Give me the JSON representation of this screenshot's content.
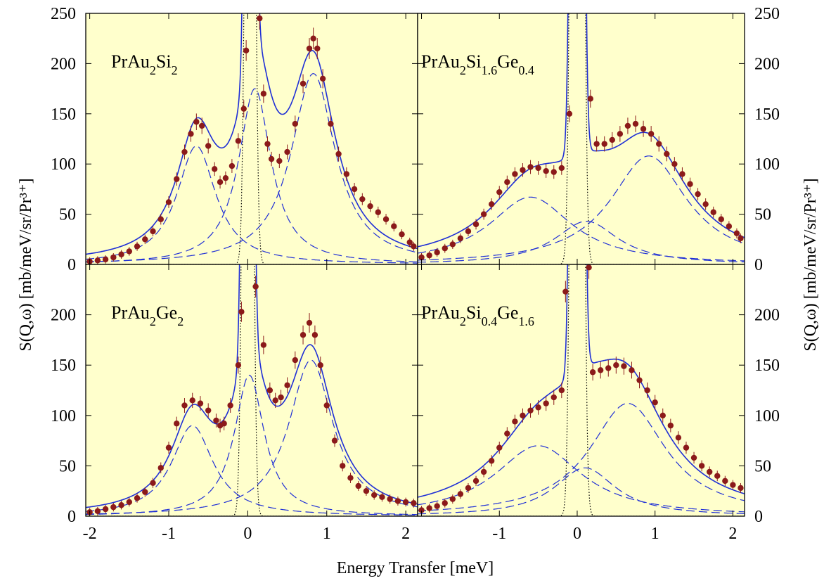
{
  "chart_data": {
    "type": "scatter",
    "xlabel": "Energy Transfer [meV]",
    "ylabel_left": "S(Q,ω) [mb/meV/sr/Pr³⁺]",
    "ylabel_right": "S(Q,ω) [mb/meV/sr/Pr³⁺]",
    "xlim": [
      -2.05,
      2.15
    ],
    "ylim": [
      0,
      250
    ],
    "x_ticks": [
      "-2",
      "-1",
      "0",
      "1",
      "2"
    ],
    "y_ticks_top": [
      "0",
      "50",
      "100",
      "150",
      "200",
      "250"
    ],
    "y_ticks_bottom": [
      "0",
      "50",
      "100",
      "150",
      "200"
    ],
    "colors": {
      "data": "#8b1a1a",
      "fit": "#1f2fd6",
      "background": "#ffffcc",
      "elastic": "#000000"
    },
    "panels": [
      {
        "id": "PrAu2Si2",
        "label_main": "PrAu",
        "label_parts": [
          [
            "PrAu",
            ""
          ],
          [
            "2",
            "sub"
          ],
          [
            "Si",
            ""
          ],
          [
            "2",
            "sub"
          ]
        ],
        "legend_pos": "top-left",
        "inelastic": [
          {
            "x0": -0.65,
            "gamma": 0.3,
            "amp": 118
          },
          {
            "x0": 0.83,
            "gamma": 0.34,
            "amp": 190
          }
        ],
        "quasielastic": {
          "x0": 0.09,
          "gamma": 0.25,
          "amp": 175
        },
        "elastic": {
          "x0": 0.03,
          "sigma": 0.045,
          "amp": 1200
        },
        "points": [
          [
            -2.0,
            3
          ],
          [
            -1.9,
            4
          ],
          [
            -1.8,
            5
          ],
          [
            -1.7,
            7
          ],
          [
            -1.6,
            10
          ],
          [
            -1.5,
            13
          ],
          [
            -1.4,
            18
          ],
          [
            -1.3,
            25
          ],
          [
            -1.2,
            33
          ],
          [
            -1.1,
            45
          ],
          [
            -1.0,
            62
          ],
          [
            -0.9,
            85
          ],
          [
            -0.8,
            112
          ],
          [
            -0.72,
            130
          ],
          [
            -0.65,
            142
          ],
          [
            -0.58,
            138
          ],
          [
            -0.5,
            118
          ],
          [
            -0.42,
            95
          ],
          [
            -0.35,
            82
          ],
          [
            -0.28,
            86
          ],
          [
            -0.2,
            98
          ],
          [
            -0.12,
            123
          ],
          [
            -0.05,
            155
          ],
          [
            -0.02,
            213
          ],
          [
            0.15,
            245
          ],
          [
            0.2,
            170
          ],
          [
            0.25,
            120
          ],
          [
            0.3,
            105
          ],
          [
            0.4,
            103
          ],
          [
            0.5,
            112
          ],
          [
            0.6,
            140
          ],
          [
            0.7,
            180
          ],
          [
            0.78,
            215
          ],
          [
            0.83,
            225
          ],
          [
            0.88,
            215
          ],
          [
            0.95,
            185
          ],
          [
            1.05,
            140
          ],
          [
            1.15,
            110
          ],
          [
            1.25,
            90
          ],
          [
            1.35,
            75
          ],
          [
            1.45,
            65
          ],
          [
            1.55,
            58
          ],
          [
            1.65,
            52
          ],
          [
            1.75,
            45
          ],
          [
            1.85,
            38
          ],
          [
            1.95,
            30
          ],
          [
            2.05,
            22
          ],
          [
            2.1,
            18
          ]
        ]
      },
      {
        "id": "PrAu2Si1.6Ge0.4",
        "label_parts": [
          [
            "PrAu",
            ""
          ],
          [
            "2",
            "sub"
          ],
          [
            "Si",
            ""
          ],
          [
            "1.6",
            "sub"
          ],
          [
            "Ge",
            ""
          ],
          [
            "0.4",
            "sub"
          ]
        ],
        "legend_pos": "top-left",
        "inelastic": [
          {
            "x0": -0.6,
            "gamma": 0.65,
            "amp": 67
          },
          {
            "x0": 0.92,
            "gamma": 0.6,
            "amp": 108
          }
        ],
        "quasielastic": {
          "x0": 0.12,
          "gamma": 0.5,
          "amp": 43
        },
        "elastic": {
          "x0": 0.0,
          "sigma": 0.05,
          "amp": 2500
        },
        "points": [
          [
            -2.0,
            7
          ],
          [
            -1.9,
            9
          ],
          [
            -1.8,
            12
          ],
          [
            -1.7,
            16
          ],
          [
            -1.6,
            20
          ],
          [
            -1.5,
            26
          ],
          [
            -1.4,
            33
          ],
          [
            -1.3,
            40
          ],
          [
            -1.2,
            50
          ],
          [
            -1.1,
            60
          ],
          [
            -1.0,
            72
          ],
          [
            -0.9,
            82
          ],
          [
            -0.8,
            90
          ],
          [
            -0.7,
            94
          ],
          [
            -0.6,
            97
          ],
          [
            -0.5,
            96
          ],
          [
            -0.4,
            93
          ],
          [
            -0.3,
            92
          ],
          [
            -0.2,
            96
          ],
          [
            -0.1,
            150
          ],
          [
            0.17,
            165
          ],
          [
            0.25,
            120
          ],
          [
            0.35,
            120
          ],
          [
            0.45,
            124
          ],
          [
            0.55,
            130
          ],
          [
            0.65,
            138
          ],
          [
            0.75,
            140
          ],
          [
            0.85,
            135
          ],
          [
            0.95,
            130
          ],
          [
            1.05,
            120
          ],
          [
            1.15,
            110
          ],
          [
            1.25,
            100
          ],
          [
            1.35,
            90
          ],
          [
            1.45,
            80
          ],
          [
            1.55,
            70
          ],
          [
            1.65,
            60
          ],
          [
            1.75,
            52
          ],
          [
            1.85,
            45
          ],
          [
            1.95,
            38
          ],
          [
            2.05,
            31
          ],
          [
            2.1,
            26
          ]
        ]
      },
      {
        "id": "PrAu2Ge2",
        "label_parts": [
          [
            "PrAu",
            ""
          ],
          [
            "2",
            "sub"
          ],
          [
            "Ge",
            ""
          ],
          [
            "2",
            "sub"
          ]
        ],
        "legend_pos": "top-left",
        "inelastic": [
          {
            "x0": -0.7,
            "gamma": 0.32,
            "amp": 90
          },
          {
            "x0": 0.8,
            "gamma": 0.34,
            "amp": 155
          }
        ],
        "quasielastic": {
          "x0": 0.02,
          "gamma": 0.23,
          "amp": 140
        },
        "elastic": {
          "x0": 0.0,
          "sigma": 0.045,
          "amp": 1500
        },
        "points": [
          [
            -2.0,
            4
          ],
          [
            -1.9,
            5
          ],
          [
            -1.8,
            7
          ],
          [
            -1.7,
            9
          ],
          [
            -1.6,
            11
          ],
          [
            -1.5,
            14
          ],
          [
            -1.4,
            18
          ],
          [
            -1.3,
            24
          ],
          [
            -1.2,
            33
          ],
          [
            -1.1,
            48
          ],
          [
            -1.0,
            68
          ],
          [
            -0.9,
            92
          ],
          [
            -0.8,
            110
          ],
          [
            -0.7,
            115
          ],
          [
            -0.6,
            112
          ],
          [
            -0.5,
            105
          ],
          [
            -0.4,
            95
          ],
          [
            -0.35,
            90
          ],
          [
            -0.3,
            92
          ],
          [
            -0.22,
            110
          ],
          [
            -0.12,
            150
          ],
          [
            -0.08,
            203
          ],
          [
            0.1,
            228
          ],
          [
            0.2,
            170
          ],
          [
            0.28,
            125
          ],
          [
            0.35,
            115
          ],
          [
            0.42,
            118
          ],
          [
            0.5,
            130
          ],
          [
            0.6,
            155
          ],
          [
            0.7,
            180
          ],
          [
            0.78,
            192
          ],
          [
            0.85,
            180
          ],
          [
            0.92,
            150
          ],
          [
            1.0,
            110
          ],
          [
            1.1,
            75
          ],
          [
            1.2,
            50
          ],
          [
            1.3,
            38
          ],
          [
            1.4,
            30
          ],
          [
            1.5,
            25
          ],
          [
            1.6,
            21
          ],
          [
            1.7,
            19
          ],
          [
            1.8,
            17
          ],
          [
            1.9,
            15
          ],
          [
            2.0,
            14
          ],
          [
            2.1,
            13
          ]
        ]
      },
      {
        "id": "PrAu2Si0.4Ge1.6",
        "label_parts": [
          [
            "PrAu",
            ""
          ],
          [
            "2",
            "sub"
          ],
          [
            "Si",
            ""
          ],
          [
            "0.4",
            "sub"
          ],
          [
            "Ge",
            ""
          ],
          [
            "1.6",
            "sub"
          ]
        ],
        "legend_pos": "top-left",
        "inelastic": [
          {
            "x0": -0.5,
            "gamma": 0.68,
            "amp": 70
          },
          {
            "x0": 0.65,
            "gamma": 0.6,
            "amp": 112
          }
        ],
        "quasielastic": {
          "x0": 0.1,
          "gamma": 0.48,
          "amp": 48
        },
        "elastic": {
          "x0": 0.0,
          "sigma": 0.05,
          "amp": 2500
        },
        "points": [
          [
            -2.0,
            6
          ],
          [
            -1.9,
            8
          ],
          [
            -1.8,
            10
          ],
          [
            -1.7,
            13
          ],
          [
            -1.6,
            17
          ],
          [
            -1.5,
            22
          ],
          [
            -1.4,
            28
          ],
          [
            -1.3,
            35
          ],
          [
            -1.2,
            44
          ],
          [
            -1.1,
            55
          ],
          [
            -1.0,
            68
          ],
          [
            -0.9,
            82
          ],
          [
            -0.8,
            94
          ],
          [
            -0.7,
            100
          ],
          [
            -0.6,
            105
          ],
          [
            -0.5,
            108
          ],
          [
            -0.4,
            112
          ],
          [
            -0.3,
            118
          ],
          [
            -0.2,
            125
          ],
          [
            -0.15,
            223
          ],
          [
            0.15,
            247
          ],
          [
            0.2,
            143
          ],
          [
            0.3,
            145
          ],
          [
            0.4,
            147
          ],
          [
            0.5,
            150
          ],
          [
            0.6,
            149
          ],
          [
            0.7,
            145
          ],
          [
            0.8,
            135
          ],
          [
            0.9,
            125
          ],
          [
            1.0,
            113
          ],
          [
            1.1,
            100
          ],
          [
            1.2,
            90
          ],
          [
            1.3,
            78
          ],
          [
            1.4,
            68
          ],
          [
            1.5,
            58
          ],
          [
            1.6,
            50
          ],
          [
            1.7,
            44
          ],
          [
            1.8,
            40
          ],
          [
            1.9,
            35
          ],
          [
            2.0,
            31
          ],
          [
            2.1,
            28
          ]
        ]
      }
    ]
  }
}
